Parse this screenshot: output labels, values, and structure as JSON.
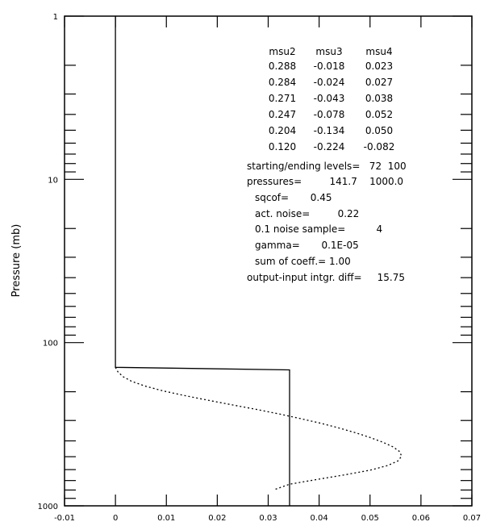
{
  "chart_data": {
    "type": "line",
    "title": "",
    "xlabel": "",
    "ylabel": "Pressure (mb)",
    "xlim": [
      -0.01,
      0.07
    ],
    "ylim": [
      1,
      1000
    ],
    "y_scale": "log",
    "y_inverted": true,
    "grid": false,
    "x_ticks": [
      -0.01,
      0,
      0.01,
      0.02,
      0.03,
      0.04,
      0.05,
      0.06,
      0.07
    ],
    "x_tick_labels": [
      "-0.01",
      "0",
      "0.01",
      "0.02",
      "0.03",
      "0.04",
      "0.05",
      "0.06",
      "0.07"
    ],
    "y_major_ticks": [
      1,
      10,
      100,
      1000
    ],
    "y_tick_labels": [
      "1",
      "10",
      "100",
      "1000"
    ],
    "series": [
      {
        "style": "solid",
        "color": "#000000",
        "x": [
          0,
          0,
          0.0342,
          0.0342
        ],
        "y": [
          1,
          141.7,
          147,
          1000
        ]
      },
      {
        "style": "dotted",
        "color": "#000000",
        "x": [
          0.0,
          0.0005,
          0.0015,
          0.0032,
          0.0058,
          0.0092,
          0.0134,
          0.018,
          0.0228,
          0.0277,
          0.0323,
          0.0365,
          0.0405,
          0.044,
          0.0472,
          0.05,
          0.0525,
          0.0545,
          0.0558,
          0.0562,
          0.0555,
          0.0535,
          0.05,
          0.045,
          0.0395,
          0.0342,
          0.031
        ],
        "y": [
          141.7,
          151.4,
          161.7,
          172.8,
          184.5,
          197.1,
          210.5,
          224.9,
          240.2,
          256.6,
          274.1,
          292.8,
          312.8,
          334.1,
          356.9,
          381.2,
          407.2,
          435.0,
          464.7,
          496.4,
          530.2,
          566.4,
          605.0,
          646.3,
          690.4,
          737.5,
          800.0
        ]
      }
    ],
    "stats_table": {
      "headers": [
        "msu2",
        "msu3",
        "msu4"
      ],
      "rows": [
        [
          "0.288",
          "-0.018",
          "0.023"
        ],
        [
          "0.284",
          "-0.024",
          "0.027"
        ],
        [
          "0.271",
          "-0.043",
          "0.038"
        ],
        [
          "0.247",
          "-0.078",
          "0.052"
        ],
        [
          "0.204",
          "-0.134",
          "0.050"
        ],
        [
          "0.120",
          "-0.224",
          "-0.082"
        ]
      ]
    },
    "annotations": {
      "levels": "starting/ending levels=   72  100",
      "pressures": "pressures=         141.7    1000.0",
      "sqcof": "sqcof=       0.45",
      "noise": "act. noise=         0.22",
      "sample": "0.1 noise sample=          4",
      "gamma": "gamma=       0.1E-05",
      "coeff": "sum of coeff.= 1.00",
      "diff": "output-input intgr. diff=     15.75"
    }
  }
}
